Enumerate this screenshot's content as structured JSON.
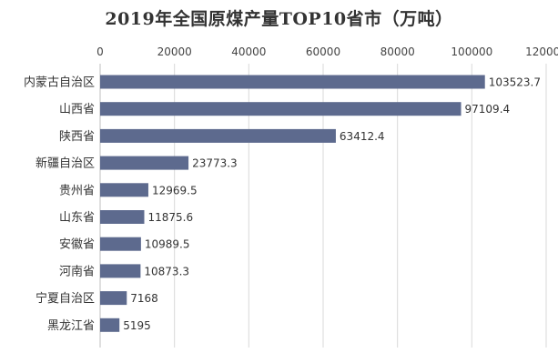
{
  "chart_data": {
    "type": "bar",
    "orientation": "horizontal",
    "title": "2019年全国原煤产量TOP10省市（万吨）",
    "categories": [
      "内蒙古自治区",
      "山西省",
      "陕西省",
      "新疆自治区",
      "贵州省",
      "山东省",
      "安徽省",
      "河南省",
      "宁夏自治区",
      "黑龙江省"
    ],
    "values": [
      103523.7,
      97109.4,
      63412.4,
      23773.3,
      12969.5,
      11875.6,
      10989.5,
      10873.3,
      7168,
      5195
    ],
    "value_labels": [
      "103523.7",
      "97109.4",
      "63412.4",
      "23773.3",
      "12969.5",
      "11875.6",
      "10989.5",
      "10873.3",
      "7168",
      "5195"
    ],
    "xlim": [
      0,
      120000
    ],
    "xticks": [
      0,
      20000,
      40000,
      60000,
      80000,
      100000,
      120000
    ],
    "xtick_labels": [
      "0",
      "20000",
      "40000",
      "60000",
      "80000",
      "100000",
      "120000"
    ],
    "xaxis_position": "top",
    "grid": true,
    "bar_color": "#5d6a8e",
    "grid_color": "#d9d9d9"
  }
}
